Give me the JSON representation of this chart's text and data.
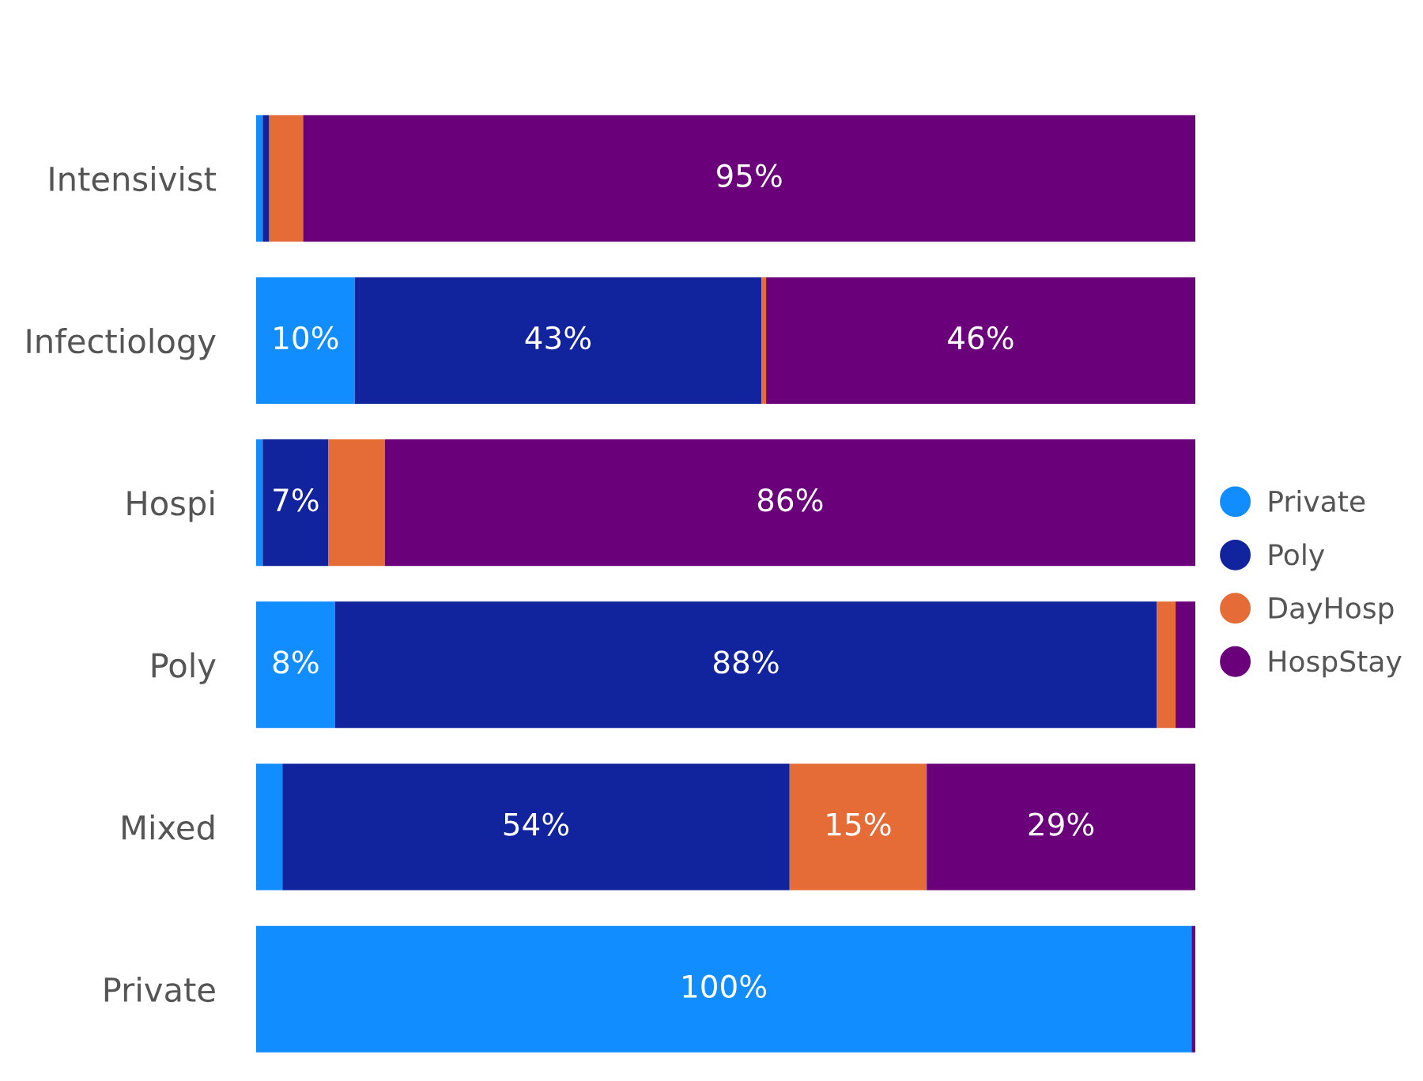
{
  "chart_data": {
    "type": "bar",
    "orientation": "horizontal",
    "stacked": true,
    "categories": [
      "Intensivist",
      "Infectiology",
      "Hospi",
      "Poly",
      "Mixed",
      "Private"
    ],
    "xlim": [
      0,
      100
    ],
    "tick_labels": "y",
    "legend": "right",
    "grid": false,
    "series": [
      {
        "name": "Private",
        "color": "#118dff",
        "values": [
          0.7,
          10.5,
          0.7,
          8.4,
          2.8,
          99.6
        ],
        "value_labels": [
          null,
          "10%",
          null,
          "8%",
          null,
          "100%"
        ]
      },
      {
        "name": "Poly",
        "color": "#12239e",
        "values": [
          0.7,
          43.3,
          7,
          87.5,
          54,
          0
        ],
        "value_labels": [
          null,
          "43%",
          "7%",
          "88%",
          "54%",
          null
        ]
      },
      {
        "name": "DayHosp",
        "color": "#e66c37",
        "values": [
          3.6,
          0.5,
          6,
          2,
          14.6,
          0
        ],
        "value_labels": [
          null,
          null,
          null,
          null,
          "15%",
          null
        ]
      },
      {
        "name": "HospStay",
        "color": "#6b007b",
        "values": [
          95,
          45.7,
          86.3,
          2.1,
          28.6,
          0.4
        ],
        "value_labels": [
          "95%",
          "46%",
          "86%",
          null,
          "29%",
          null
        ]
      }
    ]
  }
}
